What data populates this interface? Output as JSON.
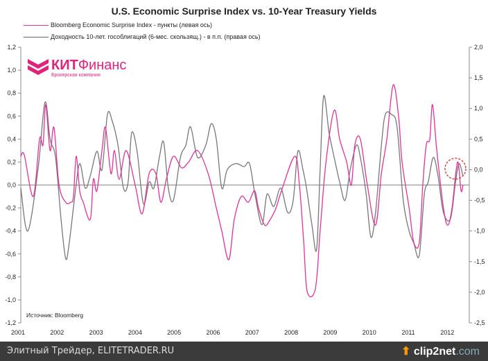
{
  "chart_data": {
    "type": "line",
    "title": "U.S. Economic Surprise Index vs. 10-Year Treasury Yields",
    "xlabel": "",
    "ylabel": "",
    "x_ticks": [
      "2001",
      "2002",
      "2003",
      "2004",
      "2005",
      "2006",
      "2007",
      "2008",
      "2009",
      "2010",
      "2011",
      "2012"
    ],
    "xlim": [
      2001,
      2012.55
    ],
    "y_left": {
      "ticks": [
        "1,2",
        "1,0",
        "0,8",
        "0,6",
        "0,4",
        "0,2",
        "0,0",
        "-0,2",
        "-0,4",
        "-0,6",
        "-0,8",
        "-1,0",
        "-1,2"
      ],
      "ylim": [
        -1.2,
        1.2
      ]
    },
    "y_right": {
      "ticks": [
        "2,0",
        "1,5",
        "1,0",
        "0,5",
        "0,0",
        "-0,5",
        "-1,0",
        "-1,5",
        "-2,0",
        "-2,5"
      ],
      "ylim": [
        -2.5,
        2.0
      ]
    },
    "grid": false,
    "legend_placement": "top-left",
    "series": [
      {
        "name": "Bloomberg Economic Surprise Index - пункты (левая ось)",
        "axis": "left",
        "color": "#e0329a",
        "points": [
          [
            2001.0,
            0.25
          ],
          [
            2001.09,
            0.26
          ],
          [
            2001.32,
            -0.1
          ],
          [
            2001.48,
            0.4
          ],
          [
            2001.57,
            0.35
          ],
          [
            2001.64,
            0.7
          ],
          [
            2001.75,
            0.3
          ],
          [
            2001.85,
            0.5
          ],
          [
            2001.98,
            0.0
          ],
          [
            2002.15,
            -0.15
          ],
          [
            2002.28,
            -0.15
          ],
          [
            2002.35,
            -0.1
          ],
          [
            2002.42,
            0.25
          ],
          [
            2002.51,
            -0.05
          ],
          [
            2002.6,
            -0.15
          ],
          [
            2002.78,
            -0.3
          ],
          [
            2002.86,
            0.05
          ],
          [
            2002.95,
            -0.05
          ],
          [
            2003.08,
            0.3
          ],
          [
            2003.17,
            0.5
          ],
          [
            2003.31,
            0.1
          ],
          [
            2003.4,
            0.3
          ],
          [
            2003.52,
            0.05
          ],
          [
            2003.7,
            0.3
          ],
          [
            2003.93,
            0.0
          ],
          [
            2004.11,
            -0.25
          ],
          [
            2004.29,
            0.1
          ],
          [
            2004.46,
            0.1
          ],
          [
            2004.59,
            -0.15
          ],
          [
            2004.73,
            0.05
          ],
          [
            2004.91,
            0.25
          ],
          [
            2005.12,
            0.15
          ],
          [
            2005.3,
            0.2
          ],
          [
            2005.53,
            0.3
          ],
          [
            2005.8,
            0.1
          ],
          [
            2006.01,
            -0.2
          ],
          [
            2006.15,
            -0.4
          ],
          [
            2006.33,
            -0.65
          ],
          [
            2006.47,
            -0.3
          ],
          [
            2006.65,
            -0.1
          ],
          [
            2006.83,
            -0.15
          ],
          [
            2006.99,
            -0.05
          ],
          [
            2007.09,
            -0.2
          ],
          [
            2007.25,
            -0.35
          ],
          [
            2007.39,
            -0.3
          ],
          [
            2007.54,
            -0.2
          ],
          [
            2007.68,
            -0.05
          ],
          [
            2008.02,
            0.25
          ],
          [
            2008.14,
            0.0
          ],
          [
            2008.25,
            -0.5
          ],
          [
            2008.34,
            -0.93
          ],
          [
            2008.55,
            -0.9
          ],
          [
            2008.67,
            -0.4
          ],
          [
            2008.82,
            0.2
          ],
          [
            2009.03,
            0.65
          ],
          [
            2009.17,
            0.4
          ],
          [
            2009.35,
            0.2
          ],
          [
            2009.47,
            0.0
          ],
          [
            2009.56,
            0.35
          ],
          [
            2009.7,
            0.4
          ],
          [
            2009.88,
            0.0
          ],
          [
            2010.09,
            -0.35
          ],
          [
            2010.24,
            0.1
          ],
          [
            2010.38,
            0.4
          ],
          [
            2010.54,
            0.87
          ],
          [
            2010.68,
            0.6
          ],
          [
            2010.77,
            0.2
          ],
          [
            2010.95,
            -0.2
          ],
          [
            2011.07,
            -0.5
          ],
          [
            2011.21,
            -0.5
          ],
          [
            2011.3,
            0.0
          ],
          [
            2011.39,
            0.35
          ],
          [
            2011.48,
            0.4
          ],
          [
            2011.55,
            0.7
          ],
          [
            2011.66,
            0.3
          ],
          [
            2011.83,
            -0.2
          ],
          [
            2011.94,
            -0.35
          ],
          [
            2012.05,
            -0.2
          ],
          [
            2012.19,
            0.2
          ],
          [
            2012.28,
            -0.05
          ],
          [
            2012.33,
            0.0
          ]
        ]
      },
      {
        "name": "Доходность 10-лет. гособлигаций (6-мес. скользящ.) - в п.п. (правая ось)",
        "axis": "right",
        "color": "#777777",
        "points": [
          [
            2001.0,
            -0.3
          ],
          [
            2001.18,
            -1.0
          ],
          [
            2001.44,
            0.0
          ],
          [
            2001.62,
            1.1
          ],
          [
            2001.75,
            0.5
          ],
          [
            2001.89,
            0.2
          ],
          [
            2002.03,
            -0.8
          ],
          [
            2002.15,
            -1.45
          ],
          [
            2002.24,
            -1.2
          ],
          [
            2002.39,
            -0.4
          ],
          [
            2002.51,
            0.1
          ],
          [
            2002.65,
            -0.3
          ],
          [
            2002.78,
            -0.1
          ],
          [
            2002.95,
            0.3
          ],
          [
            2003.08,
            0.0
          ],
          [
            2003.22,
            0.9
          ],
          [
            2003.34,
            0.8
          ],
          [
            2003.49,
            0.4
          ],
          [
            2003.63,
            -0.3
          ],
          [
            2003.75,
            -0.2
          ],
          [
            2003.84,
            0.6
          ],
          [
            2003.98,
            0.3
          ],
          [
            2004.14,
            -0.55
          ],
          [
            2004.29,
            -0.2
          ],
          [
            2004.41,
            -0.3
          ],
          [
            2004.55,
            0.2
          ],
          [
            2004.66,
            0.45
          ],
          [
            2004.78,
            -0.3
          ],
          [
            2004.91,
            -0.5
          ],
          [
            2005.09,
            0.2
          ],
          [
            2005.23,
            0.4
          ],
          [
            2005.35,
            0.7
          ],
          [
            2005.53,
            0.2
          ],
          [
            2005.74,
            0.4
          ],
          [
            2005.88,
            0.75
          ],
          [
            2006.01,
            0.5
          ],
          [
            2006.15,
            -0.3
          ],
          [
            2006.29,
            0.0
          ],
          [
            2006.51,
            0.1
          ],
          [
            2006.72,
            0.05
          ],
          [
            2006.86,
            0.1
          ],
          [
            2007.0,
            -0.4
          ],
          [
            2007.18,
            -0.9
          ],
          [
            2007.31,
            -0.4
          ],
          [
            2007.48,
            -0.6
          ],
          [
            2007.66,
            -0.3
          ],
          [
            2007.84,
            -0.7
          ],
          [
            2007.98,
            -0.5
          ],
          [
            2008.1,
            0.3
          ],
          [
            2008.23,
            0.0
          ],
          [
            2008.32,
            -0.3
          ],
          [
            2008.46,
            -0.9
          ],
          [
            2008.58,
            -1.3
          ],
          [
            2008.67,
            0.0
          ],
          [
            2008.76,
            1.2
          ],
          [
            2008.9,
            0.6
          ],
          [
            2009.03,
            0.2
          ],
          [
            2009.17,
            -0.2
          ],
          [
            2009.31,
            -0.5
          ],
          [
            2009.44,
            0.0
          ],
          [
            2009.6,
            0.4
          ],
          [
            2009.7,
            0.2
          ],
          [
            2009.85,
            -0.4
          ],
          [
            2009.97,
            -1.1
          ],
          [
            2010.09,
            -0.7
          ],
          [
            2010.24,
            0.4
          ],
          [
            2010.34,
            0.9
          ],
          [
            2010.5,
            0.9
          ],
          [
            2010.64,
            0.7
          ],
          [
            2010.8,
            -0.5
          ],
          [
            2010.95,
            -1.0
          ],
          [
            2011.07,
            -1.2
          ],
          [
            2011.21,
            -1.4
          ],
          [
            2011.34,
            -0.4
          ],
          [
            2011.44,
            -0.2
          ],
          [
            2011.57,
            0.2
          ],
          [
            2011.69,
            -0.1
          ],
          [
            2011.83,
            -0.7
          ],
          [
            2012.01,
            -0.8
          ],
          [
            2012.14,
            -0.2
          ],
          [
            2012.23,
            0.1
          ],
          [
            2012.33,
            -0.1
          ]
        ]
      }
    ],
    "annotations": [
      "Источник: Bloomberg"
    ]
  },
  "legend": [
    "Bloomberg Economic Surprise Index - пункты (левая ось)",
    "Доходность 10-лет. гособлигаций (6-мес. скользящ.) - в п.п. (правая ось)"
  ],
  "logo": {
    "brand_bold": "КИТ",
    "brand_rest": "Финанс",
    "subtitle": "Брокерская компания"
  },
  "source": "Источник: Bloomberg",
  "footer": {
    "text": "Элитный Трейдер, ELITETRADER.RU",
    "clip_brand": "clip2net",
    "clip_domain": ".com"
  }
}
